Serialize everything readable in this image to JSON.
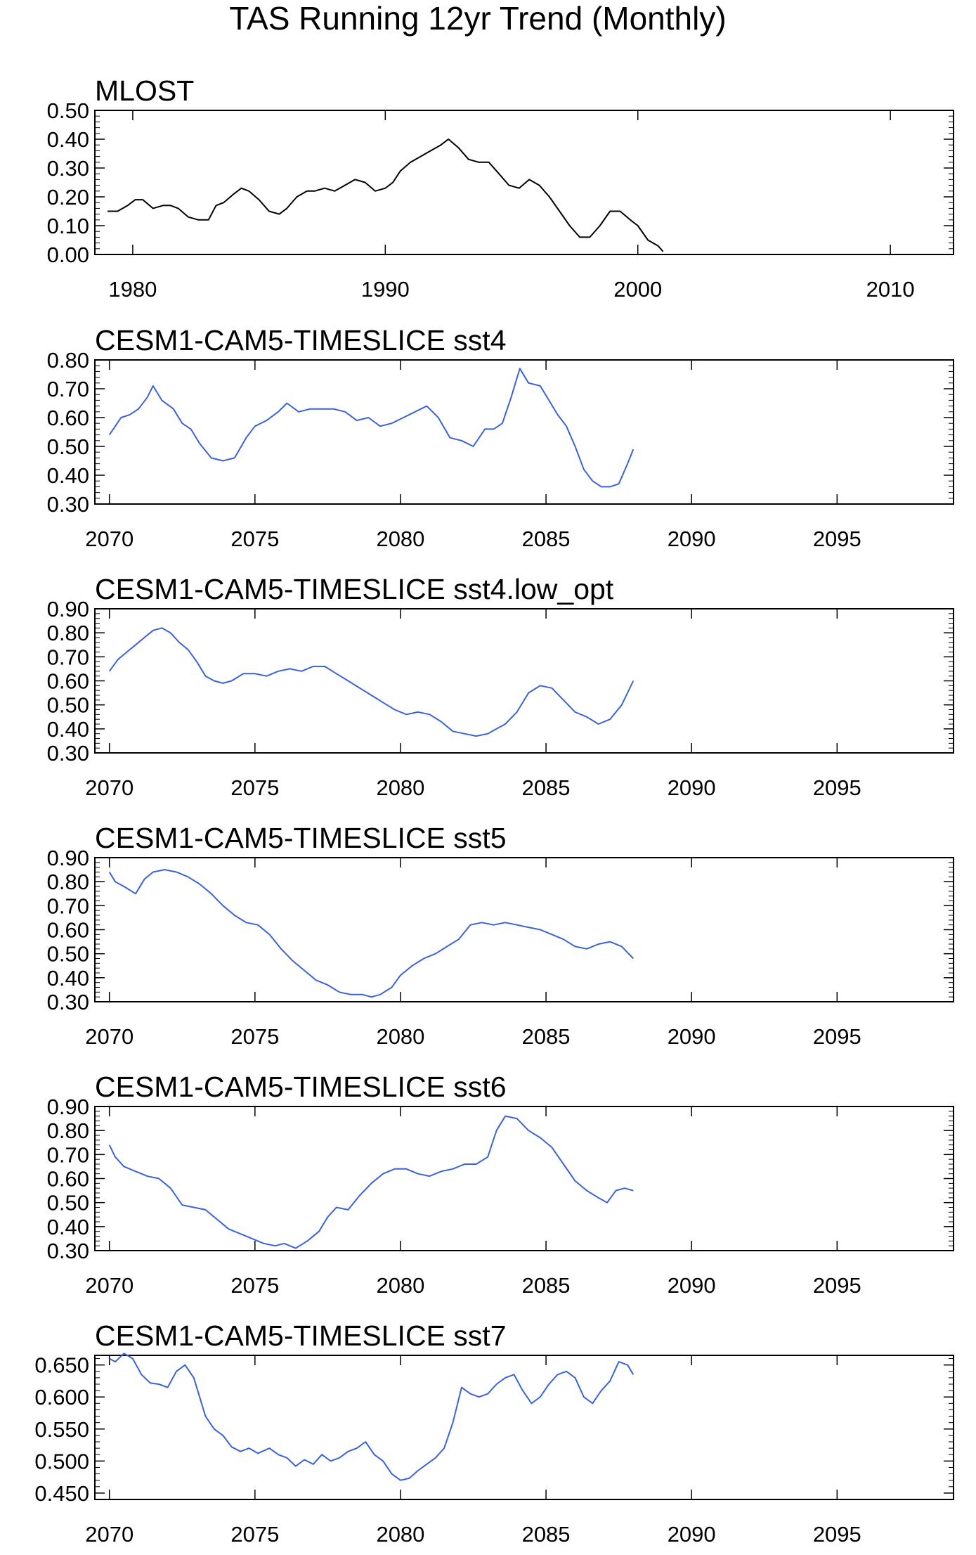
{
  "title": "TAS Running 12yr Trend (Monthly)",
  "colors": {
    "obs": "#000000",
    "model": "#3a63d8",
    "axis": "#000000"
  },
  "chart_data": [
    {
      "type": "line",
      "title": "MLOST",
      "series_color": "#000000",
      "xlim": [
        1978.5,
        2012.5
      ],
      "xticks": [
        1980,
        1990,
        2000,
        2010
      ],
      "ylim": [
        0.0,
        0.5
      ],
      "yticks": [
        "0.00",
        "0.10",
        "0.20",
        "0.30",
        "0.40",
        "0.50"
      ],
      "grid": false,
      "x": [
        1979.0,
        1979.4,
        1979.8,
        1980.1,
        1980.4,
        1980.8,
        1981.2,
        1981.5,
        1981.8,
        1982.2,
        1982.6,
        1983.0,
        1983.3,
        1983.6,
        1984.0,
        1984.3,
        1984.6,
        1985.0,
        1985.4,
        1985.8,
        1986.1,
        1986.5,
        1986.9,
        1987.2,
        1987.6,
        1988.0,
        1988.4,
        1988.8,
        1989.2,
        1989.6,
        1990.0,
        1990.3,
        1990.6,
        1991.0,
        1991.4,
        1991.8,
        1992.2,
        1992.5,
        1992.9,
        1993.3,
        1993.7,
        1994.1,
        1994.5,
        1994.9,
        1995.3,
        1995.7,
        1996.1,
        1996.5,
        1996.9,
        1997.3,
        1997.7,
        1998.1,
        1998.5,
        1998.9,
        1999.3,
        1999.7,
        2000.0,
        2000.4,
        2000.8,
        2001.0
      ],
      "y": [
        0.15,
        0.15,
        0.17,
        0.19,
        0.19,
        0.16,
        0.17,
        0.17,
        0.16,
        0.13,
        0.12,
        0.12,
        0.17,
        0.18,
        0.21,
        0.23,
        0.22,
        0.19,
        0.15,
        0.14,
        0.16,
        0.2,
        0.22,
        0.22,
        0.23,
        0.22,
        0.24,
        0.26,
        0.25,
        0.22,
        0.23,
        0.25,
        0.29,
        0.32,
        0.34,
        0.36,
        0.38,
        0.4,
        0.37,
        0.33,
        0.32,
        0.32,
        0.28,
        0.24,
        0.23,
        0.26,
        0.24,
        0.2,
        0.15,
        0.1,
        0.06,
        0.06,
        0.1,
        0.15,
        0.15,
        0.12,
        0.1,
        0.05,
        0.03,
        0.01
      ]
    },
    {
      "type": "line",
      "title": "CESM1-CAM5-TIMESLICE sst4",
      "series_color": "#3a63d8",
      "xlim": [
        2069.5,
        2099.0
      ],
      "xticks": [
        2070,
        2075,
        2080,
        2085,
        2090,
        2095
      ],
      "ylim": [
        0.3,
        0.8
      ],
      "yticks": [
        "0.30",
        "0.40",
        "0.50",
        "0.60",
        "0.70",
        "0.80"
      ],
      "grid": false,
      "x": [
        2070.0,
        2070.2,
        2070.4,
        2070.7,
        2071.0,
        2071.3,
        2071.5,
        2071.8,
        2072.2,
        2072.5,
        2072.8,
        2073.1,
        2073.5,
        2073.9,
        2074.3,
        2074.7,
        2075.0,
        2075.4,
        2075.8,
        2076.1,
        2076.5,
        2076.9,
        2077.3,
        2077.7,
        2078.1,
        2078.5,
        2078.9,
        2079.3,
        2079.7,
        2080.1,
        2080.5,
        2080.9,
        2081.3,
        2081.7,
        2082.1,
        2082.5,
        2082.9,
        2083.2,
        2083.5,
        2083.8,
        2084.1,
        2084.4,
        2084.8,
        2085.1,
        2085.4,
        2085.7,
        2086.0,
        2086.3,
        2086.6,
        2086.9,
        2087.2,
        2087.5,
        2087.8,
        2088.0
      ],
      "y": [
        0.54,
        0.57,
        0.6,
        0.61,
        0.63,
        0.67,
        0.71,
        0.66,
        0.63,
        0.58,
        0.56,
        0.51,
        0.46,
        0.45,
        0.46,
        0.53,
        0.57,
        0.59,
        0.62,
        0.65,
        0.62,
        0.63,
        0.63,
        0.63,
        0.62,
        0.59,
        0.6,
        0.57,
        0.58,
        0.6,
        0.62,
        0.64,
        0.6,
        0.53,
        0.52,
        0.5,
        0.56,
        0.56,
        0.58,
        0.67,
        0.77,
        0.72,
        0.71,
        0.66,
        0.61,
        0.57,
        0.5,
        0.42,
        0.38,
        0.36,
        0.36,
        0.37,
        0.44,
        0.49
      ]
    },
    {
      "type": "line",
      "title": "CESM1-CAM5-TIMESLICE sst4.low_opt",
      "series_color": "#3a63d8",
      "xlim": [
        2069.5,
        2099.0
      ],
      "xticks": [
        2070,
        2075,
        2080,
        2085,
        2090,
        2095
      ],
      "ylim": [
        0.3,
        0.9
      ],
      "yticks": [
        "0.30",
        "0.40",
        "0.50",
        "0.60",
        "0.70",
        "0.80",
        "0.90"
      ],
      "grid": false,
      "x": [
        2070.0,
        2070.3,
        2070.6,
        2070.9,
        2071.2,
        2071.5,
        2071.8,
        2072.1,
        2072.4,
        2072.7,
        2073.0,
        2073.3,
        2073.6,
        2073.9,
        2074.2,
        2074.6,
        2075.0,
        2075.4,
        2075.8,
        2076.2,
        2076.6,
        2077.0,
        2077.4,
        2077.8,
        2078.2,
        2078.6,
        2079.0,
        2079.4,
        2079.8,
        2080.2,
        2080.6,
        2081.0,
        2081.4,
        2081.8,
        2082.2,
        2082.6,
        2083.0,
        2083.3,
        2083.6,
        2084.0,
        2084.4,
        2084.8,
        2085.2,
        2085.6,
        2086.0,
        2086.4,
        2086.8,
        2087.2,
        2087.6,
        2088.0
      ],
      "y": [
        0.64,
        0.69,
        0.72,
        0.75,
        0.78,
        0.81,
        0.82,
        0.8,
        0.76,
        0.73,
        0.68,
        0.62,
        0.6,
        0.59,
        0.6,
        0.63,
        0.63,
        0.62,
        0.64,
        0.65,
        0.64,
        0.66,
        0.66,
        0.63,
        0.6,
        0.57,
        0.54,
        0.51,
        0.48,
        0.46,
        0.47,
        0.46,
        0.43,
        0.39,
        0.38,
        0.37,
        0.38,
        0.4,
        0.42,
        0.47,
        0.55,
        0.58,
        0.57,
        0.52,
        0.47,
        0.45,
        0.42,
        0.44,
        0.5,
        0.6
      ]
    },
    {
      "type": "line",
      "title": "CESM1-CAM5-TIMESLICE sst5",
      "series_color": "#3a63d8",
      "xlim": [
        2069.5,
        2099.0
      ],
      "xticks": [
        2070,
        2075,
        2080,
        2085,
        2090,
        2095
      ],
      "ylim": [
        0.3,
        0.9
      ],
      "yticks": [
        "0.30",
        "0.40",
        "0.50",
        "0.60",
        "0.70",
        "0.80",
        "0.90"
      ],
      "grid": false,
      "x": [
        2070.0,
        2070.2,
        2070.5,
        2070.9,
        2071.2,
        2071.5,
        2071.9,
        2072.3,
        2072.7,
        2073.1,
        2073.5,
        2073.9,
        2074.3,
        2074.7,
        2075.1,
        2075.5,
        2075.9,
        2076.3,
        2076.7,
        2077.1,
        2077.5,
        2077.9,
        2078.3,
        2078.7,
        2079.0,
        2079.3,
        2079.7,
        2080.0,
        2080.4,
        2080.8,
        2081.2,
        2081.6,
        2082.0,
        2082.4,
        2082.8,
        2083.2,
        2083.6,
        2084.0,
        2084.4,
        2084.8,
        2085.2,
        2085.6,
        2086.0,
        2086.4,
        2086.8,
        2087.2,
        2087.6,
        2088.0
      ],
      "y": [
        0.84,
        0.8,
        0.78,
        0.75,
        0.81,
        0.84,
        0.85,
        0.84,
        0.82,
        0.79,
        0.75,
        0.7,
        0.66,
        0.63,
        0.62,
        0.58,
        0.52,
        0.47,
        0.43,
        0.39,
        0.37,
        0.34,
        0.33,
        0.33,
        0.32,
        0.33,
        0.36,
        0.41,
        0.45,
        0.48,
        0.5,
        0.53,
        0.56,
        0.62,
        0.63,
        0.62,
        0.63,
        0.62,
        0.61,
        0.6,
        0.58,
        0.56,
        0.53,
        0.52,
        0.54,
        0.55,
        0.53,
        0.48
      ]
    },
    {
      "type": "line",
      "title": "CESM1-CAM5-TIMESLICE sst6",
      "series_color": "#3a63d8",
      "xlim": [
        2069.5,
        2099.0
      ],
      "xticks": [
        2070,
        2075,
        2080,
        2085,
        2090,
        2095
      ],
      "ylim": [
        0.3,
        0.9
      ],
      "yticks": [
        "0.30",
        "0.40",
        "0.50",
        "0.60",
        "0.70",
        "0.80",
        "0.90"
      ],
      "grid": false,
      "x": [
        2070.0,
        2070.2,
        2070.5,
        2070.9,
        2071.3,
        2071.7,
        2072.1,
        2072.5,
        2072.9,
        2073.3,
        2073.7,
        2074.1,
        2074.5,
        2074.9,
        2075.3,
        2075.7,
        2076.0,
        2076.4,
        2076.8,
        2077.2,
        2077.5,
        2077.8,
        2078.2,
        2078.6,
        2079.0,
        2079.4,
        2079.8,
        2080.2,
        2080.6,
        2081.0,
        2081.4,
        2081.8,
        2082.2,
        2082.6,
        2083.0,
        2083.3,
        2083.6,
        2084.0,
        2084.4,
        2084.8,
        2085.2,
        2085.6,
        2086.0,
        2086.4,
        2086.8,
        2087.1,
        2087.4,
        2087.7,
        2088.0
      ],
      "y": [
        0.74,
        0.69,
        0.65,
        0.63,
        0.61,
        0.6,
        0.56,
        0.49,
        0.48,
        0.47,
        0.43,
        0.39,
        0.37,
        0.35,
        0.33,
        0.32,
        0.33,
        0.31,
        0.34,
        0.38,
        0.44,
        0.48,
        0.47,
        0.53,
        0.58,
        0.62,
        0.64,
        0.64,
        0.62,
        0.61,
        0.63,
        0.64,
        0.66,
        0.66,
        0.69,
        0.8,
        0.86,
        0.85,
        0.8,
        0.77,
        0.73,
        0.66,
        0.59,
        0.55,
        0.52,
        0.5,
        0.55,
        0.56,
        0.55
      ]
    },
    {
      "type": "line",
      "title": "CESM1-CAM5-TIMESLICE sst7",
      "series_color": "#3a63d8",
      "xlim": [
        2069.5,
        2099.0
      ],
      "xticks": [
        2070,
        2075,
        2080,
        2085,
        2090,
        2095
      ],
      "ylim": [
        0.44,
        0.665
      ],
      "yticks": [
        "0.450",
        "0.500",
        "0.550",
        "0.600",
        "0.650"
      ],
      "grid": false,
      "x": [
        2070.0,
        2070.2,
        2070.5,
        2070.8,
        2071.1,
        2071.4,
        2071.7,
        2072.0,
        2072.3,
        2072.6,
        2072.9,
        2073.1,
        2073.3,
        2073.6,
        2073.9,
        2074.2,
        2074.5,
        2074.8,
        2075.1,
        2075.5,
        2075.8,
        2076.1,
        2076.4,
        2076.7,
        2077.0,
        2077.3,
        2077.6,
        2077.9,
        2078.2,
        2078.5,
        2078.8,
        2079.1,
        2079.4,
        2079.7,
        2080.0,
        2080.3,
        2080.6,
        2080.9,
        2081.2,
        2081.5,
        2081.8,
        2082.1,
        2082.4,
        2082.7,
        2083.0,
        2083.3,
        2083.6,
        2083.9,
        2084.2,
        2084.5,
        2084.8,
        2085.1,
        2085.4,
        2085.7,
        2086.0,
        2086.3,
        2086.6,
        2086.9,
        2087.2,
        2087.5,
        2087.8,
        2088.0
      ],
      "y": [
        0.66,
        0.655,
        0.668,
        0.66,
        0.635,
        0.622,
        0.62,
        0.615,
        0.64,
        0.65,
        0.63,
        0.6,
        0.57,
        0.55,
        0.54,
        0.522,
        0.515,
        0.52,
        0.512,
        0.52,
        0.51,
        0.505,
        0.492,
        0.502,
        0.495,
        0.51,
        0.5,
        0.505,
        0.515,
        0.52,
        0.53,
        0.51,
        0.5,
        0.48,
        0.47,
        0.473,
        0.485,
        0.495,
        0.505,
        0.52,
        0.56,
        0.615,
        0.605,
        0.6,
        0.605,
        0.62,
        0.63,
        0.635,
        0.61,
        0.59,
        0.6,
        0.62,
        0.635,
        0.64,
        0.63,
        0.6,
        0.59,
        0.61,
        0.625,
        0.655,
        0.65,
        0.635
      ]
    }
  ]
}
